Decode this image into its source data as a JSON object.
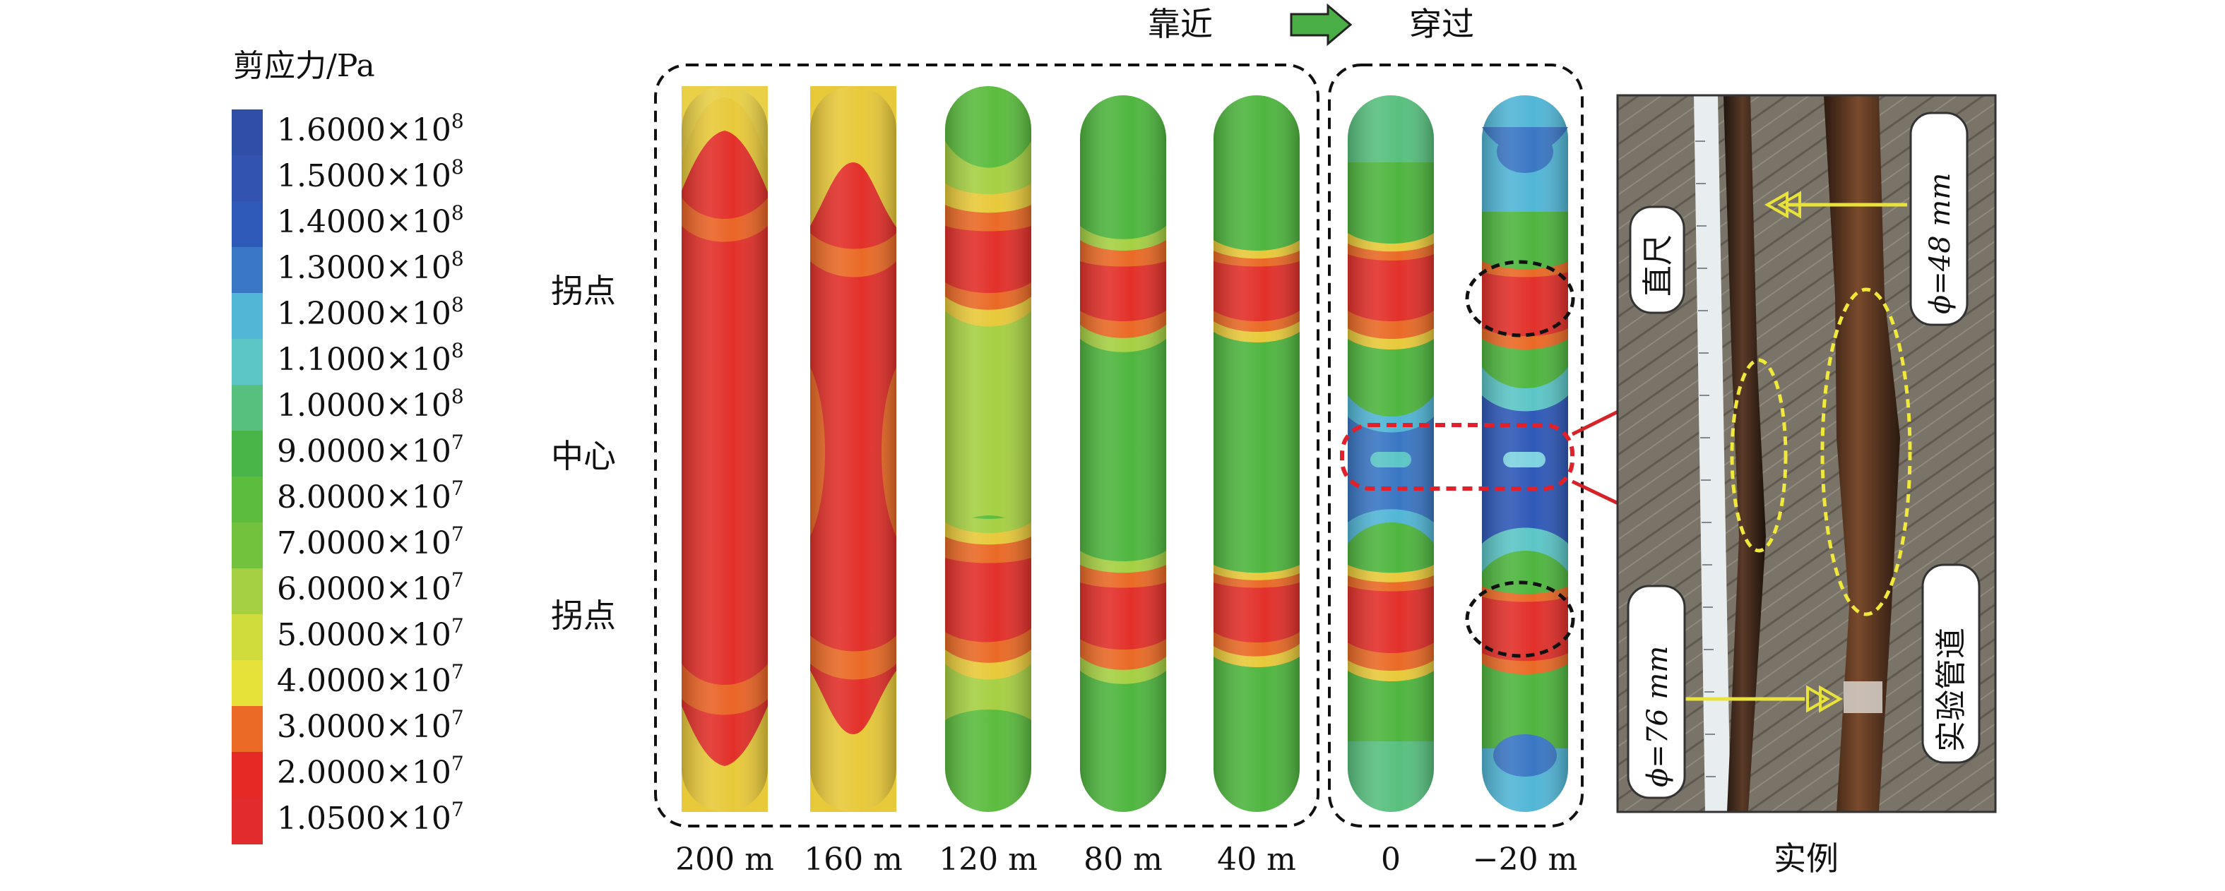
{
  "legend": {
    "title": "剪应力/Pa",
    "entries": [
      {
        "mantissa": "1.6000×10",
        "exp": "8",
        "color": "#2f4fa6"
      },
      {
        "mantissa": "1.5000×10",
        "exp": "8",
        "color": "#3353b0"
      },
      {
        "mantissa": "1.4000×10",
        "exp": "8",
        "color": "#2f59b8"
      },
      {
        "mantissa": "1.3000×10",
        "exp": "8",
        "color": "#3a77c4"
      },
      {
        "mantissa": "1.2000×10",
        "exp": "8",
        "color": "#52b6d6"
      },
      {
        "mantissa": "1.1000×10",
        "exp": "8",
        "color": "#5cc5c6"
      },
      {
        "mantissa": "1.0000×10",
        "exp": "8",
        "color": "#58c07e"
      },
      {
        "mantissa": "9.0000×10",
        "exp": "7",
        "color": "#49b548"
      },
      {
        "mantissa": "8.0000×10",
        "exp": "7",
        "color": "#5bbc3e"
      },
      {
        "mantissa": "7.0000×10",
        "exp": "7",
        "color": "#72c23d"
      },
      {
        "mantissa": "6.0000×10",
        "exp": "7",
        "color": "#a6d043"
      },
      {
        "mantissa": "5.0000×10",
        "exp": "7",
        "color": "#cfdc3b"
      },
      {
        "mantissa": "4.0000×10",
        "exp": "7",
        "color": "#e6e23a"
      },
      {
        "mantissa": "3.0000×10",
        "exp": "7",
        "color": "#ea6a26"
      },
      {
        "mantissa": "2.0000×10",
        "exp": "7",
        "color": "#e52a26"
      },
      {
        "mantissa": "1.0500×10",
        "exp": "7",
        "color": "#e22b2c"
      }
    ]
  },
  "row_labels": {
    "upper": "拐点",
    "center": "中心",
    "lower": "拐点"
  },
  "header": {
    "approach": "靠近",
    "cross": "穿过"
  },
  "distances": [
    "200 m",
    "160 m",
    "120 m",
    "80 m",
    "40 m",
    "0",
    "−20 m"
  ],
  "example_label": "实例",
  "photo_labels": {
    "ruler": "直尺",
    "pipe_small": "ϕ=48 mm",
    "pipe_large": "ϕ=76 mm",
    "test_pipe": "实验管道"
  }
}
